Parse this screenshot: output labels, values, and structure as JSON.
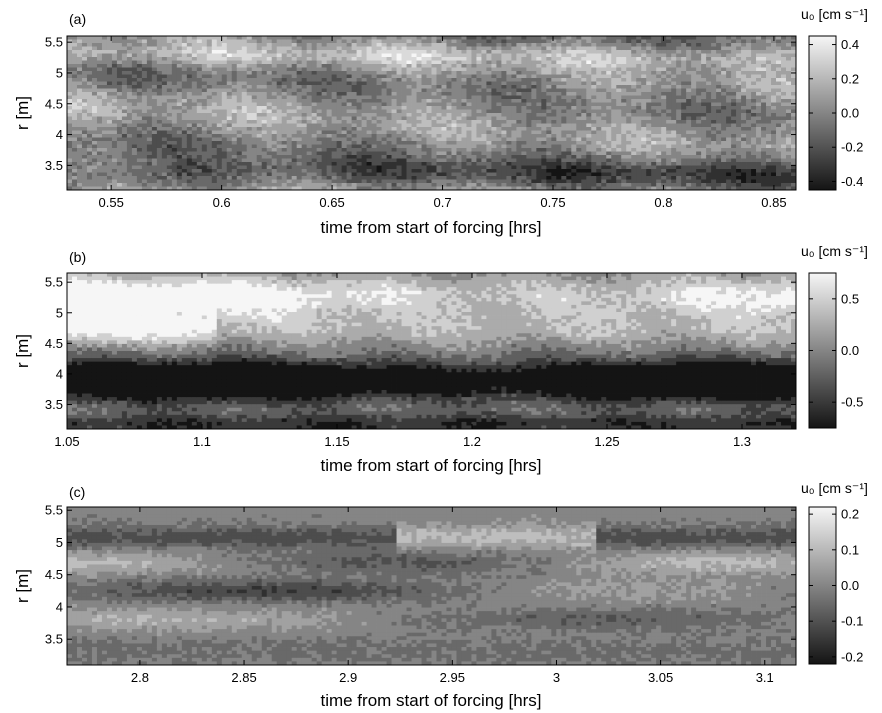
{
  "chart_data": [
    {
      "type": "heatmap",
      "panel_label": "(a)",
      "xlabel": "time from start of forcing [hrs]",
      "ylabel": "r [m]",
      "xlim": [
        0.53,
        0.86
      ],
      "ylim": [
        3.1,
        5.6
      ],
      "xticks": [
        0.55,
        0.6,
        0.65,
        0.7,
        0.75,
        0.8,
        0.85
      ],
      "xtick_labels": [
        "0.55",
        "0.6",
        "0.65",
        "0.7",
        "0.75",
        "0.8",
        "0.85"
      ],
      "yticks": [
        3.5,
        4,
        4.5,
        5,
        5.5
      ],
      "ytick_labels": [
        "3.5",
        "4",
        "4.5",
        "5",
        "5.5"
      ],
      "colorbar": {
        "title": "u₀ [cm s⁻¹]",
        "range": [
          -0.45,
          0.45
        ],
        "ticks": [
          0.4,
          0.2,
          0.0,
          -0.2,
          -0.4
        ],
        "tick_labels": [
          "0.4",
          "0.2",
          "0.0",
          "-0.2",
          "-0.4"
        ]
      },
      "grid": false
    },
    {
      "type": "heatmap",
      "panel_label": "(b)",
      "xlabel": "time from start of forcing [hrs]",
      "ylabel": "r [m]",
      "xlim": [
        1.05,
        1.32
      ],
      "ylim": [
        3.1,
        5.65
      ],
      "xticks": [
        1.05,
        1.1,
        1.15,
        1.2,
        1.25,
        1.3
      ],
      "xtick_labels": [
        "1.05",
        "1.1",
        "1.15",
        "1.2",
        "1.25",
        "1.3"
      ],
      "yticks": [
        3.5,
        4,
        4.5,
        5,
        5.5
      ],
      "ytick_labels": [
        "3.5",
        "4",
        "4.5",
        "5",
        "5.5"
      ],
      "colorbar": {
        "title": "u₀ [cm s⁻¹]",
        "range": [
          -0.75,
          0.75
        ],
        "ticks": [
          0.5,
          0.0,
          -0.5
        ],
        "tick_labels": [
          "0.5",
          "0.0",
          "-0.5"
        ]
      },
      "grid": false
    },
    {
      "type": "heatmap",
      "panel_label": "(c)",
      "xlabel": "time from start of forcing [hrs]",
      "ylabel": "r [m]",
      "xlim": [
        2.765,
        3.115
      ],
      "ylim": [
        3.1,
        5.55
      ],
      "xticks": [
        2.8,
        2.85,
        2.9,
        2.95,
        3,
        3.05,
        3.1
      ],
      "xtick_labels": [
        "2.8",
        "2.85",
        "2.9",
        "2.95",
        "3",
        "3.05",
        "3.1"
      ],
      "yticks": [
        3.5,
        4,
        4.5,
        5,
        5.5
      ],
      "ytick_labels": [
        "3.5",
        "4",
        "4.5",
        "5",
        "5.5"
      ],
      "colorbar": {
        "title": "u₀ [cm s⁻¹]",
        "range": [
          -0.22,
          0.22
        ],
        "ticks": [
          0.2,
          0.1,
          0.0,
          -0.1,
          -0.2
        ],
        "tick_labels": [
          "0.2",
          "0.1",
          "0.0",
          "-0.1",
          "-0.2"
        ]
      },
      "grid": false
    }
  ]
}
